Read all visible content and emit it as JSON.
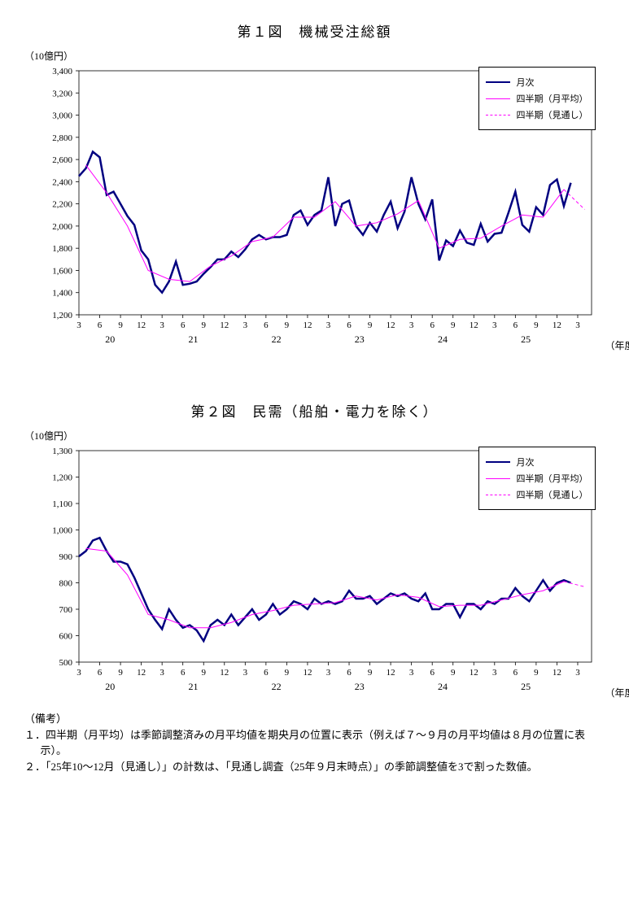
{
  "chart1": {
    "title": "第１図　機械受注総額",
    "unit": "（10億円）",
    "xunit": "（年度）",
    "type": "line",
    "background": "#ffffff",
    "grid_color": "#000000",
    "ylim": [
      1200,
      3400
    ],
    "ytick_step": 200,
    "yticks": [
      1200,
      1400,
      1600,
      1800,
      2000,
      2200,
      2400,
      2600,
      2800,
      3000,
      3200,
      3400
    ],
    "x_months": [
      "3",
      "6",
      "9",
      "12",
      "3",
      "6",
      "9",
      "12",
      "3",
      "6",
      "9",
      "12",
      "3",
      "6",
      "9",
      "12",
      "3",
      "6",
      "9",
      "12",
      "3",
      "6",
      "9",
      "12",
      "3"
    ],
    "x_years": [
      "20",
      "21",
      "22",
      "23",
      "24",
      "25"
    ],
    "series_monthly": {
      "label": "月次",
      "color": "#000080",
      "width": 2.5,
      "values": [
        2450,
        2520,
        2670,
        2620,
        2280,
        2310,
        2200,
        2090,
        2010,
        1780,
        1700,
        1470,
        1400,
        1500,
        1680,
        1470,
        1480,
        1500,
        1570,
        1630,
        1700,
        1700,
        1770,
        1720,
        1790,
        1880,
        1920,
        1880,
        1900,
        1900,
        1920,
        2100,
        2140,
        2010,
        2100,
        2140,
        2440,
        2000,
        2200,
        2230,
        2000,
        1920,
        2030,
        1950,
        2100,
        2220,
        1980,
        2130,
        2440,
        2200,
        2060,
        2240,
        1690,
        1870,
        1820,
        1960,
        1850,
        1830,
        2020,
        1860,
        1930,
        1940,
        2120,
        2310,
        2010,
        1950,
        2170,
        2100,
        2370,
        2420,
        2180,
        2390
      ]
    },
    "series_quarterly": {
      "label": "四半期（月平均）",
      "color": "#ff00ff",
      "width": 1,
      "points": [
        [
          1,
          2550
        ],
        [
          4,
          2300
        ],
        [
          7,
          2000
        ],
        [
          10,
          1600
        ],
        [
          13,
          1520
        ],
        [
          16,
          1500
        ],
        [
          19,
          1640
        ],
        [
          22,
          1730
        ],
        [
          25,
          1860
        ],
        [
          28,
          1900
        ],
        [
          31,
          2080
        ],
        [
          34,
          2080
        ],
        [
          37,
          2220
        ],
        [
          40,
          2000
        ],
        [
          43,
          2030
        ],
        [
          46,
          2110
        ],
        [
          49,
          2230
        ],
        [
          52,
          1800
        ],
        [
          55,
          1880
        ],
        [
          58,
          1890
        ],
        [
          61,
          2000
        ],
        [
          64,
          2100
        ],
        [
          67,
          2080
        ],
        [
          70,
          2330
        ]
      ]
    },
    "series_forecast": {
      "label": "四半期（見通し）",
      "color": "#ff00ff",
      "width": 1,
      "dash": "4,3",
      "points": [
        [
          70,
          2330
        ],
        [
          73,
          2150
        ]
      ]
    },
    "legend": [
      {
        "label": "月次",
        "color": "#000080",
        "width": 2.5,
        "dash": ""
      },
      {
        "label": "四半期（月平均）",
        "color": "#ff00ff",
        "width": 1,
        "dash": ""
      },
      {
        "label": "四半期（見通し）",
        "color": "#ff00ff",
        "width": 1,
        "dash": "4,3"
      }
    ]
  },
  "chart2": {
    "title": "第２図　民需（船舶・電力を除く）",
    "unit": "（10億円）",
    "xunit": "（年度）",
    "type": "line",
    "background": "#ffffff",
    "grid_color": "#000000",
    "ylim": [
      500,
      1300
    ],
    "ytick_step": 100,
    "yticks": [
      500,
      600,
      700,
      800,
      900,
      1000,
      1100,
      1200,
      1300
    ],
    "x_months": [
      "3",
      "6",
      "9",
      "12",
      "3",
      "6",
      "9",
      "12",
      "3",
      "6",
      "9",
      "12",
      "3",
      "6",
      "9",
      "12",
      "3",
      "6",
      "9",
      "12",
      "3",
      "6",
      "9",
      "12",
      "3"
    ],
    "x_years": [
      "20",
      "21",
      "22",
      "23",
      "24",
      "25"
    ],
    "series_monthly": {
      "label": "月次",
      "color": "#000080",
      "width": 2.5,
      "values": [
        900,
        920,
        960,
        970,
        920,
        880,
        880,
        870,
        820,
        760,
        700,
        660,
        625,
        700,
        660,
        630,
        640,
        620,
        580,
        640,
        660,
        640,
        680,
        640,
        670,
        700,
        660,
        680,
        720,
        680,
        700,
        730,
        720,
        700,
        740,
        720,
        730,
        720,
        730,
        770,
        740,
        740,
        750,
        720,
        740,
        760,
        750,
        760,
        740,
        730,
        760,
        700,
        700,
        720,
        720,
        670,
        720,
        720,
        700,
        730,
        720,
        740,
        740,
        780,
        750,
        730,
        770,
        810,
        770,
        800,
        810,
        800
      ]
    },
    "series_quarterly": {
      "label": "四半期（月平均）",
      "color": "#ff00ff",
      "width": 1,
      "points": [
        [
          1,
          930
        ],
        [
          4,
          920
        ],
        [
          7,
          830
        ],
        [
          10,
          680
        ],
        [
          13,
          660
        ],
        [
          16,
          630
        ],
        [
          19,
          630
        ],
        [
          22,
          650
        ],
        [
          25,
          680
        ],
        [
          28,
          695
        ],
        [
          31,
          715
        ],
        [
          34,
          720
        ],
        [
          37,
          725
        ],
        [
          40,
          750
        ],
        [
          43,
          735
        ],
        [
          46,
          755
        ],
        [
          49,
          745
        ],
        [
          52,
          710
        ],
        [
          55,
          715
        ],
        [
          58,
          715
        ],
        [
          61,
          735
        ],
        [
          64,
          755
        ],
        [
          67,
          770
        ],
        [
          70,
          805
        ]
      ]
    },
    "series_forecast": {
      "label": "四半期（見通し）",
      "color": "#ff00ff",
      "width": 1,
      "dash": "4,3",
      "points": [
        [
          70,
          805
        ],
        [
          73,
          785
        ]
      ]
    },
    "legend": [
      {
        "label": "月次",
        "color": "#000080",
        "width": 2.5,
        "dash": ""
      },
      {
        "label": "四半期（月平均）",
        "color": "#ff00ff",
        "width": 1,
        "dash": ""
      },
      {
        "label": "四半期（見通し）",
        "color": "#ff00ff",
        "width": 1,
        "dash": "4,3"
      }
    ]
  },
  "notes": {
    "header": "（備考）",
    "lines": [
      "１．四半期（月平均）は季節調整済みの月平均値を期央月の位置に表示（例えば７～９月の月平均値は８月の位置に表示）。",
      "２．「25年10～12月（見通し）」の計数は、「見通し調査（25年９月末時点）」の季節調整値を3で割った数値。"
    ]
  }
}
